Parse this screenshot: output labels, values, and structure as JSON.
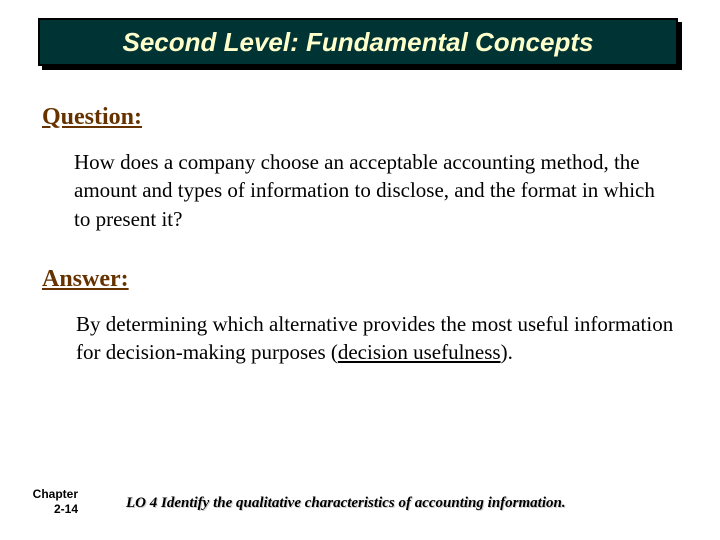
{
  "title": "Second Level: Fundamental Concepts",
  "question_label": "Question:",
  "question_body": "How does a company choose an acceptable accounting method, the amount and types of information to disclose, and the format in which to present it?",
  "answer_label": "Answer:",
  "answer_body_pre": "By determining which alternative provides the most useful information for decision-making purposes (",
  "answer_body_underlined": "decision usefulness",
  "answer_body_post": ").",
  "chapter_line1": "Chapter",
  "chapter_line2": "2-14",
  "lo_text": "LO 4  Identify the qualitative characteristics of accounting information.",
  "colors": {
    "title_bg": "#003333",
    "title_text": "#ffffcc",
    "label_text": "#663300",
    "body_text": "#000000",
    "background": "#ffffff"
  },
  "fonts": {
    "main_family": "Comic Sans MS",
    "title_size": 26,
    "label_size": 24,
    "body_size": 21,
    "lo_size": 15,
    "chapter_size": 12
  }
}
